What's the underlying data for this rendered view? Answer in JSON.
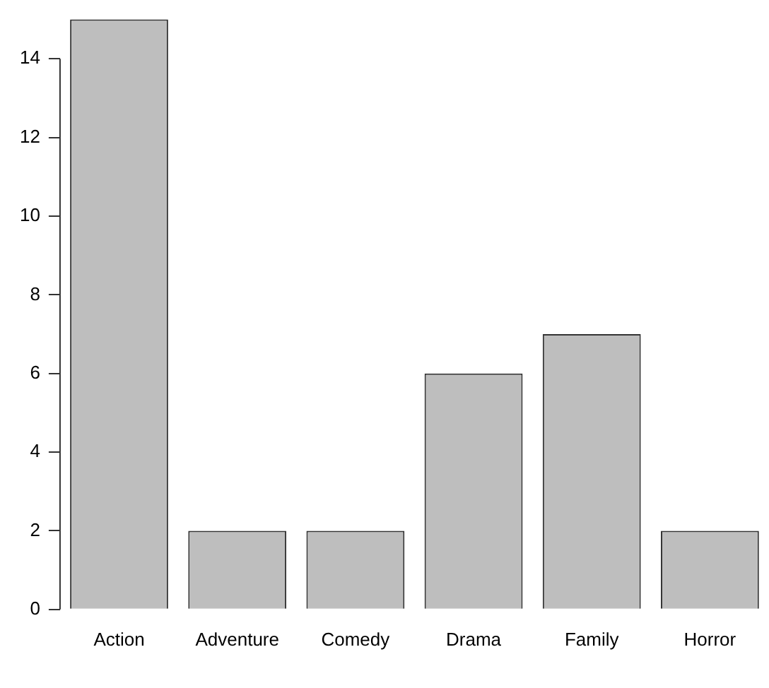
{
  "chart_data": {
    "type": "bar",
    "categories": [
      "Action",
      "Adventure",
      "Comedy",
      "Drama",
      "Family",
      "Horror"
    ],
    "values": [
      15,
      2,
      2,
      6,
      7,
      2
    ],
    "color": "#bebebe",
    "ylim": [
      0,
      15
    ],
    "yticks": [
      0,
      2,
      4,
      6,
      8,
      10,
      12,
      14
    ],
    "grid": false,
    "legend": false
  }
}
